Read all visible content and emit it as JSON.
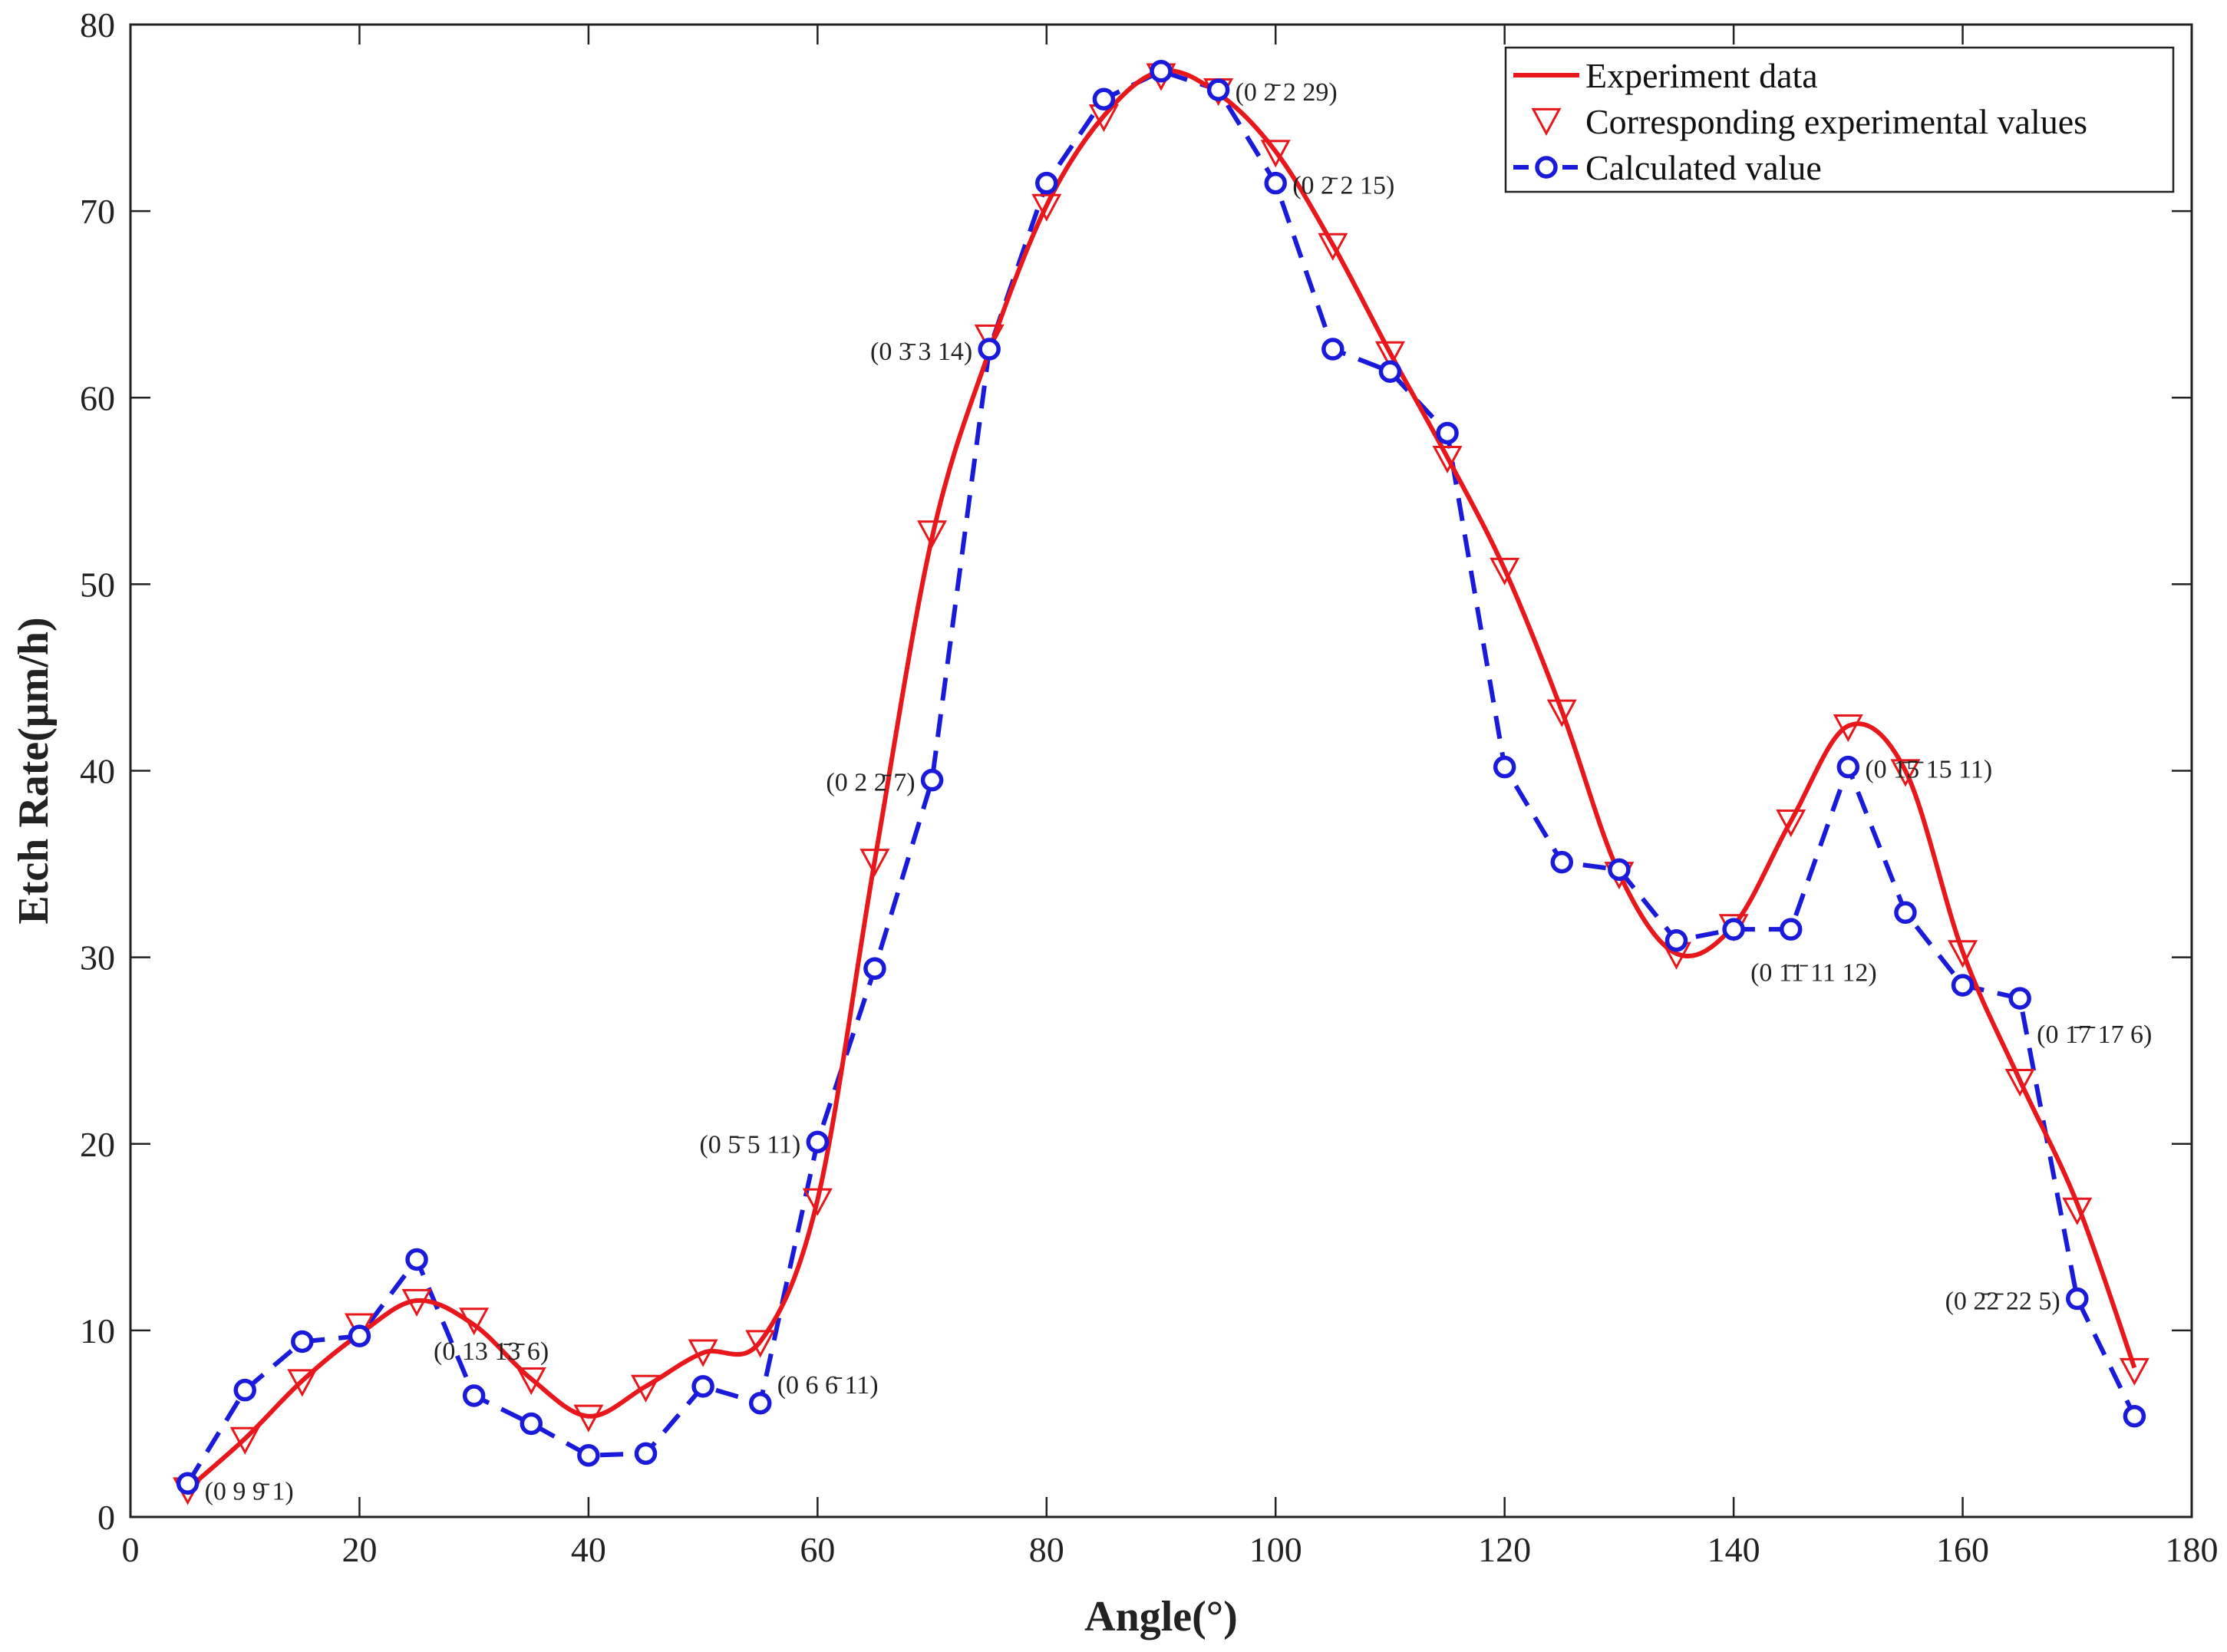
{
  "chart_data": {
    "type": "line",
    "title": "",
    "xlabel": "Angle(°)",
    "ylabel": "Etch Rate(μm/h)",
    "xlim": [
      0,
      180
    ],
    "ylim": [
      0,
      80
    ],
    "xticks": [
      0,
      20,
      40,
      60,
      80,
      100,
      120,
      140,
      160,
      180
    ],
    "yticks": [
      0,
      10,
      20,
      30,
      40,
      50,
      60,
      70,
      80
    ],
    "grid": false,
    "legend_position": "top-right",
    "colors": {
      "experiment": "#e8171b",
      "calculated": "#1a1adb",
      "axis": "#222222"
    },
    "series": [
      {
        "name": "Experiment data",
        "style": "solid-line",
        "x": [
          5,
          10,
          15,
          20,
          25,
          30,
          35,
          40,
          45,
          50,
          55,
          60,
          65,
          70,
          75,
          80,
          85,
          90,
          95,
          100,
          105,
          110,
          115,
          120,
          125,
          130,
          135,
          140,
          145,
          150,
          155,
          160,
          165,
          170,
          175
        ],
        "values": [
          1.5,
          4.2,
          7.3,
          9.8,
          11.6,
          10.3,
          7.4,
          5.4,
          7.0,
          8.8,
          9.4,
          17.0,
          35.2,
          52.5,
          62.5,
          70.3,
          75.1,
          77.5,
          76.3,
          73.2,
          68.2,
          62.4,
          56.8,
          50.8,
          43.2,
          34.5,
          30.2,
          31.7,
          37.3,
          42.4,
          40.0,
          30.3,
          23.4,
          16.8,
          8.0
        ]
      },
      {
        "name": "Corresponding experimental values",
        "style": "triangle-markers",
        "x": [
          5,
          10,
          15,
          20,
          25,
          30,
          35,
          40,
          45,
          50,
          55,
          60,
          65,
          70,
          75,
          80,
          85,
          90,
          95,
          100,
          105,
          110,
          115,
          120,
          125,
          130,
          135,
          140,
          145,
          150,
          155,
          160,
          165,
          170,
          175
        ],
        "values": [
          1.5,
          4.2,
          7.3,
          10.3,
          11.6,
          10.6,
          7.4,
          5.4,
          7.0,
          8.9,
          9.4,
          17.0,
          35.2,
          52.8,
          63.3,
          70.3,
          75.1,
          77.3,
          76.5,
          73.2,
          68.2,
          62.4,
          56.8,
          50.8,
          43.2,
          34.5,
          30.2,
          31.7,
          37.3,
          42.4,
          40.0,
          30.3,
          23.4,
          16.5,
          7.9
        ]
      },
      {
        "name": "Calculated value",
        "style": "dashed-line-circles",
        "x": [
          5,
          10,
          15,
          20,
          25,
          30,
          35,
          40,
          45,
          50,
          55,
          60,
          65,
          70,
          75,
          80,
          85,
          90,
          95,
          100,
          105,
          110,
          115,
          120,
          125,
          130,
          135,
          140,
          145,
          150,
          155,
          160,
          165,
          170,
          175
        ],
        "values": [
          1.8,
          6.8,
          9.4,
          9.7,
          13.8,
          6.5,
          5.0,
          3.3,
          3.4,
          7.0,
          6.1,
          20.1,
          29.4,
          39.5,
          62.6,
          71.5,
          76.0,
          77.5,
          76.5,
          71.5,
          62.6,
          61.4,
          58.1,
          40.2,
          35.1,
          34.7,
          30.9,
          31.5,
          31.5,
          40.2,
          32.4,
          28.5,
          27.8,
          11.7,
          5.4
        ]
      }
    ],
    "annotations": [
      {
        "text": "(0 2̄ 2 29)",
        "x": 95,
        "y": 76.5,
        "anchor": "start"
      },
      {
        "text": "(0 2̄ 2 15)",
        "x": 100,
        "y": 71.5,
        "anchor": "start"
      },
      {
        "text": "(0 3̄ 3 14)",
        "x": 75,
        "y": 62.6,
        "anchor": "end"
      },
      {
        "text": "(0 2 2̄ 7)",
        "x": 70,
        "y": 39.5,
        "anchor": "end"
      },
      {
        "text": "(0 5̄ 5 11)",
        "x": 60,
        "y": 20.1,
        "anchor": "end"
      },
      {
        "text": "(0 13 1̄3̄ 6)",
        "x": 25,
        "y": 9.0,
        "anchor": "start"
      },
      {
        "text": "(0 6 6̄ 11)",
        "x": 55,
        "y": 7.2,
        "anchor": "start"
      },
      {
        "text": "(0 9 9̄ 1)",
        "x": 5,
        "y": 1.5,
        "anchor": "start"
      },
      {
        "text": "(0 1̄5̄ 15 11)",
        "x": 150,
        "y": 40.2,
        "anchor": "start"
      },
      {
        "text": "(0 1̄1̄ 11 12)",
        "x": 140,
        "y": 29.3,
        "anchor": "start"
      },
      {
        "text": "(0 1̄7̄ 17 6)",
        "x": 165,
        "y": 26.0,
        "anchor": "start"
      },
      {
        "text": "(0 2̄2̄ 22 5)",
        "x": 170,
        "y": 11.7,
        "anchor": "end"
      }
    ]
  }
}
